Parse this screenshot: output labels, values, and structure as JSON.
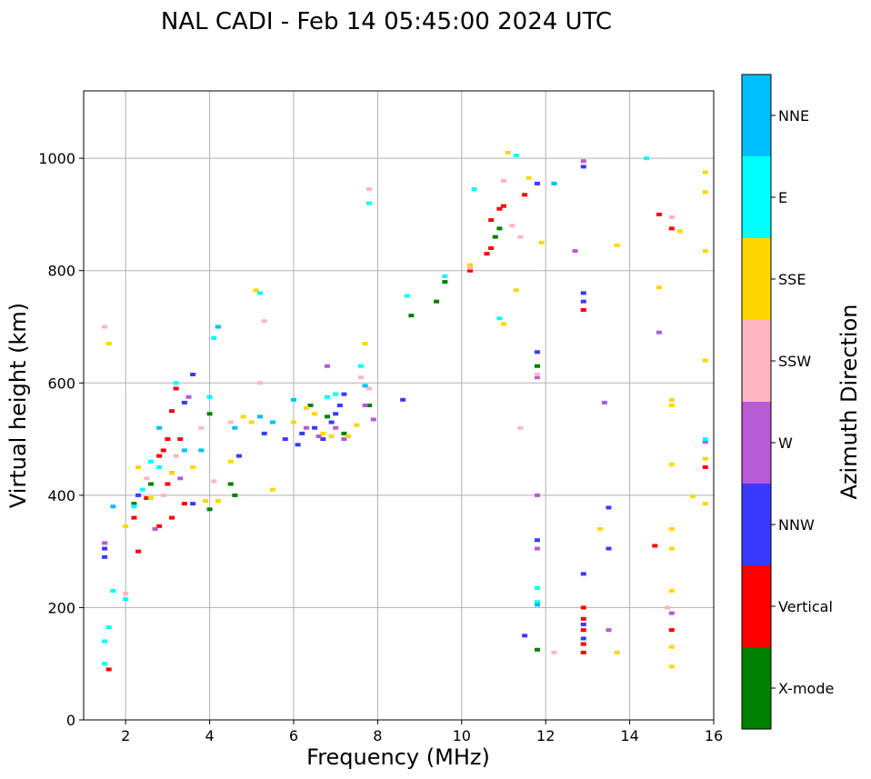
{
  "chart_data": {
    "type": "scatter",
    "title": "NAL CADI - Feb 14 05:45:00 2024 UTC",
    "xlabel": "Frequency (MHz)",
    "ylabel": "Virtual height (km)",
    "xlim": [
      1,
      16
    ],
    "ylim": [
      0,
      1120
    ],
    "xticks": [
      2,
      4,
      6,
      8,
      10,
      12,
      14,
      16
    ],
    "yticks": [
      0,
      200,
      400,
      600,
      800,
      1000
    ],
    "grid": true,
    "colorbar": {
      "label": "Azimuth Direction",
      "categories": [
        {
          "name": "X-mode",
          "color": "#008000"
        },
        {
          "name": "Vertical",
          "color": "#ff0000"
        },
        {
          "name": "NNW",
          "color": "#3a3aff"
        },
        {
          "name": "W",
          "color": "#b65ad6"
        },
        {
          "name": "SSW",
          "color": "#ffb6c1"
        },
        {
          "name": "SSE",
          "color": "#ffd700"
        },
        {
          "name": "E",
          "color": "#00ffff"
        },
        {
          "name": "NNE",
          "color": "#00bfff"
        }
      ]
    },
    "series": [
      {
        "name": "X-mode",
        "points": [
          [
            2.2,
            385
          ],
          [
            2.6,
            420
          ],
          [
            3.1,
            440
          ],
          [
            4.0,
            375
          ],
          [
            4.0,
            545
          ],
          [
            4.5,
            420
          ],
          [
            4.6,
            400
          ],
          [
            6.4,
            560
          ],
          [
            6.8,
            540
          ],
          [
            7.2,
            510
          ],
          [
            7.8,
            560
          ],
          [
            8.8,
            720
          ],
          [
            9.4,
            745
          ],
          [
            9.6,
            780
          ],
          [
            10.8,
            860
          ],
          [
            10.9,
            875
          ],
          [
            11.8,
            125
          ],
          [
            11.8,
            630
          ]
        ]
      },
      {
        "name": "Vertical",
        "points": [
          [
            1.6,
            90
          ],
          [
            2.2,
            360
          ],
          [
            2.3,
            300
          ],
          [
            2.5,
            395
          ],
          [
            2.8,
            345
          ],
          [
            2.8,
            470
          ],
          [
            2.9,
            480
          ],
          [
            3.0,
            500
          ],
          [
            3.0,
            420
          ],
          [
            3.1,
            360
          ],
          [
            3.1,
            550
          ],
          [
            3.2,
            590
          ],
          [
            3.4,
            385
          ],
          [
            3.3,
            500
          ],
          [
            10.2,
            800
          ],
          [
            10.6,
            830
          ],
          [
            10.7,
            840
          ],
          [
            10.7,
            890
          ],
          [
            10.9,
            910
          ],
          [
            11.0,
            915
          ],
          [
            11.5,
            935
          ],
          [
            12.9,
            120
          ],
          [
            12.9,
            135
          ],
          [
            12.9,
            160
          ],
          [
            12.9,
            180
          ],
          [
            12.9,
            200
          ],
          [
            12.9,
            730
          ],
          [
            14.6,
            310
          ],
          [
            14.7,
            900
          ],
          [
            15.0,
            160
          ],
          [
            15.0,
            875
          ],
          [
            15.8,
            450
          ]
        ]
      },
      {
        "name": "NNW",
        "points": [
          [
            1.5,
            290
          ],
          [
            1.5,
            305
          ],
          [
            2.3,
            400
          ],
          [
            3.4,
            565
          ],
          [
            3.6,
            385
          ],
          [
            3.6,
            615
          ],
          [
            4.7,
            470
          ],
          [
            5.3,
            510
          ],
          [
            5.8,
            500
          ],
          [
            6.1,
            490
          ],
          [
            6.2,
            510
          ],
          [
            6.5,
            520
          ],
          [
            6.7,
            500
          ],
          [
            6.9,
            530
          ],
          [
            7.0,
            545
          ],
          [
            7.1,
            560
          ],
          [
            7.2,
            580
          ],
          [
            8.6,
            570
          ],
          [
            11.5,
            150
          ],
          [
            11.8,
            320
          ],
          [
            11.8,
            655
          ],
          [
            11.8,
            955
          ],
          [
            12.9,
            145
          ],
          [
            12.9,
            170
          ],
          [
            12.9,
            260
          ],
          [
            12.9,
            745
          ],
          [
            12.9,
            760
          ],
          [
            12.9,
            985
          ],
          [
            13.5,
            305
          ],
          [
            13.5,
            378
          ]
        ]
      },
      {
        "name": "W",
        "points": [
          [
            1.5,
            315
          ],
          [
            2.7,
            340
          ],
          [
            3.3,
            430
          ],
          [
            3.5,
            575
          ],
          [
            6.3,
            520
          ],
          [
            6.6,
            505
          ],
          [
            6.8,
            630
          ],
          [
            7.0,
            520
          ],
          [
            7.2,
            500
          ],
          [
            7.7,
            560
          ],
          [
            7.9,
            535
          ],
          [
            11.8,
            305
          ],
          [
            11.8,
            400
          ],
          [
            11.8,
            610
          ],
          [
            12.7,
            835
          ],
          [
            12.9,
            995
          ],
          [
            13.4,
            565
          ],
          [
            13.5,
            160
          ],
          [
            14.7,
            690
          ],
          [
            15.0,
            190
          ],
          [
            15.8,
            495
          ]
        ]
      },
      {
        "name": "SSW",
        "points": [
          [
            1.5,
            700
          ],
          [
            2.0,
            225
          ],
          [
            2.5,
            430
          ],
          [
            2.9,
            400
          ],
          [
            3.2,
            470
          ],
          [
            3.8,
            520
          ],
          [
            4.1,
            425
          ],
          [
            4.5,
            530
          ],
          [
            5.2,
            600
          ],
          [
            5.3,
            710
          ],
          [
            7.6,
            610
          ],
          [
            7.8,
            945
          ],
          [
            7.8,
            590
          ],
          [
            10.2,
            805
          ],
          [
            11.0,
            960
          ],
          [
            11.2,
            880
          ],
          [
            11.4,
            520
          ],
          [
            11.4,
            860
          ],
          [
            11.8,
            615
          ],
          [
            12.2,
            120
          ],
          [
            14.9,
            200
          ],
          [
            15.0,
            895
          ]
        ]
      },
      {
        "name": "SSE",
        "points": [
          [
            1.6,
            670
          ],
          [
            2.0,
            345
          ],
          [
            2.3,
            450
          ],
          [
            2.6,
            395
          ],
          [
            3.1,
            440
          ],
          [
            3.6,
            450
          ],
          [
            3.9,
            390
          ],
          [
            4.2,
            390
          ],
          [
            4.5,
            460
          ],
          [
            4.8,
            540
          ],
          [
            5.0,
            530
          ],
          [
            5.1,
            765
          ],
          [
            5.5,
            410
          ],
          [
            6.0,
            530
          ],
          [
            6.3,
            555
          ],
          [
            6.5,
            545
          ],
          [
            6.7,
            510
          ],
          [
            6.9,
            505
          ],
          [
            7.3,
            505
          ],
          [
            7.5,
            525
          ],
          [
            7.7,
            670
          ],
          [
            10.2,
            810
          ],
          [
            11.0,
            705
          ],
          [
            11.1,
            1010
          ],
          [
            11.3,
            765
          ],
          [
            11.6,
            965
          ],
          [
            11.9,
            850
          ],
          [
            13.3,
            340
          ],
          [
            13.7,
            845
          ],
          [
            13.7,
            120
          ],
          [
            14.7,
            770
          ],
          [
            15.0,
            95
          ],
          [
            15.0,
            130
          ],
          [
            15.0,
            230
          ],
          [
            15.0,
            305
          ],
          [
            15.0,
            340
          ],
          [
            15.0,
            455
          ],
          [
            15.0,
            560
          ],
          [
            15.0,
            570
          ],
          [
            15.2,
            870
          ],
          [
            15.5,
            398
          ],
          [
            15.8,
            385
          ],
          [
            15.8,
            465
          ],
          [
            15.8,
            640
          ],
          [
            15.8,
            835
          ],
          [
            15.8,
            940
          ],
          [
            15.8,
            975
          ]
        ]
      },
      {
        "name": "E",
        "points": [
          [
            1.5,
            100
          ],
          [
            1.5,
            140
          ],
          [
            1.6,
            165
          ],
          [
            1.7,
            230
          ],
          [
            2.0,
            215
          ],
          [
            2.2,
            380
          ],
          [
            2.4,
            410
          ],
          [
            2.6,
            460
          ],
          [
            2.8,
            450
          ],
          [
            3.2,
            600
          ],
          [
            4.0,
            575
          ],
          [
            4.1,
            680
          ],
          [
            4.2,
            700
          ],
          [
            5.2,
            760
          ],
          [
            6.8,
            575
          ],
          [
            7.0,
            580
          ],
          [
            7.6,
            630
          ],
          [
            7.8,
            920
          ],
          [
            8.7,
            755
          ],
          [
            9.6,
            790
          ],
          [
            10.3,
            945
          ],
          [
            10.9,
            715
          ],
          [
            11.3,
            1005
          ],
          [
            11.8,
            210
          ],
          [
            11.8,
            235
          ],
          [
            12.2,
            955
          ],
          [
            14.4,
            1000
          ],
          [
            15.8,
            500
          ]
        ]
      },
      {
        "name": "NNE",
        "points": [
          [
            1.7,
            380
          ],
          [
            2.8,
            520
          ],
          [
            3.4,
            480
          ],
          [
            3.8,
            480
          ],
          [
            4.2,
            700
          ],
          [
            4.6,
            520
          ],
          [
            5.2,
            540
          ],
          [
            5.5,
            530
          ],
          [
            6.0,
            570
          ],
          [
            7.7,
            595
          ],
          [
            11.8,
            205
          ],
          [
            12.2,
            955
          ]
        ]
      }
    ]
  }
}
